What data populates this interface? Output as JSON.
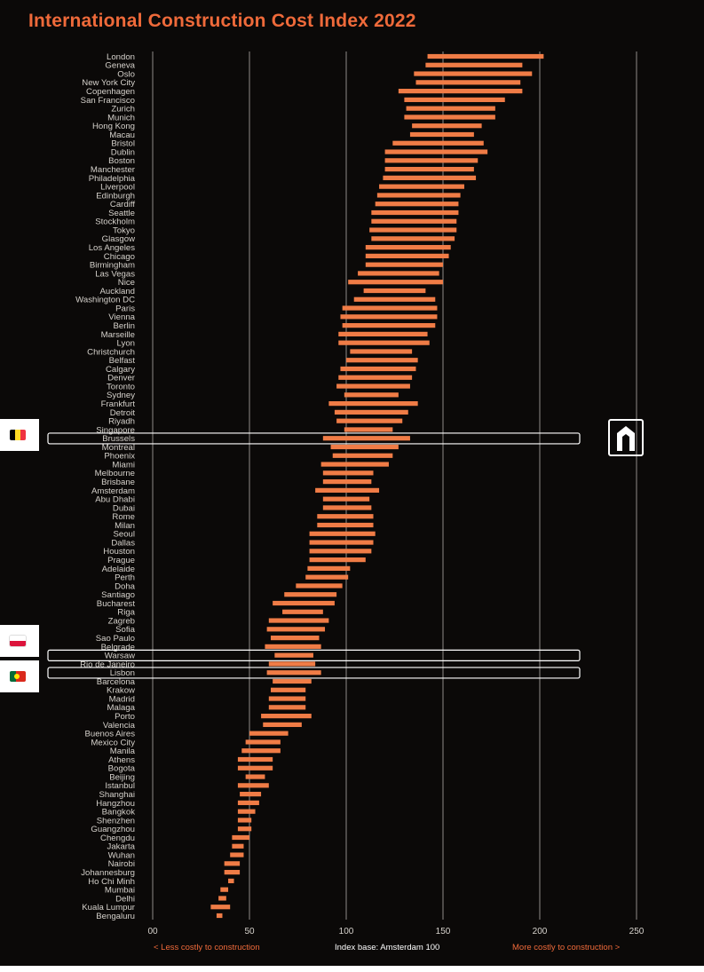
{
  "title": "International Construction Cost Index 2022",
  "footer": {
    "left": "< Less costly to construction",
    "center": "Index base: Amsterdam 100",
    "right": "More costly to construction >"
  },
  "colors": {
    "background": "#0b0908",
    "bar": "#f07c46",
    "title": "#ef6a3a",
    "text": "#d6d2cc",
    "grid": "#8f8c88",
    "highlight_box": "#ffffff"
  },
  "highlighted_cities": [
    "Brussels",
    "Warsaw",
    "Lisbon"
  ],
  "flags": [
    {
      "city": "Brussels",
      "icon": "belgium-flag-icon"
    },
    {
      "city": "Warsaw",
      "icon": "poland-flag-icon"
    },
    {
      "city": "Lisbon",
      "icon": "portugal-flag-icon"
    }
  ],
  "logo_icon": "building-logo-icon",
  "chart_data": {
    "type": "bar",
    "orientation": "horizontal-range",
    "title": "International Construction Cost Index 2022",
    "xlim": [
      0,
      250
    ],
    "xticks": [
      0,
      50,
      100,
      150,
      200,
      250
    ],
    "xtick_labels": [
      "00",
      "50",
      "100",
      "150",
      "200",
      "250"
    ],
    "grid": true,
    "categories": [
      "London",
      "Geneva",
      "Oslo",
      "New York City",
      "Copenhagen",
      "San Francisco",
      "Zurich",
      "Munich",
      "Hong Kong",
      "Macau",
      "Bristol",
      "Dublin",
      "Boston",
      "Manchester",
      "Philadelphia",
      "Liverpool",
      "Edinburgh",
      "Cardiff",
      "Seattle",
      "Stockholm",
      "Tokyo",
      "Glasgow",
      "Los Angeles",
      "Chicago",
      "Birmingham",
      "Las Vegas",
      "Nice",
      "Auckland",
      "Washington DC",
      "Paris",
      "Vienna",
      "Berlin",
      "Marseille",
      "Lyon",
      "Christchurch",
      "Belfast",
      "Calgary",
      "Denver",
      "Toronto",
      "Sydney",
      "Frankfurt",
      "Detroit",
      "Riyadh",
      "Singapore",
      "Brussels",
      "Montreal",
      "Phoenix",
      "Miami",
      "Melbourne",
      "Brisbane",
      "Amsterdam",
      "Abu Dhabi",
      "Dubai",
      "Rome",
      "Milan",
      "Seoul",
      "Dallas",
      "Houston",
      "Prague",
      "Adelaide",
      "Perth",
      "Doha",
      "Santiago",
      "Bucharest",
      "Riga",
      "Zagreb",
      "Sofia",
      "Sao Paulo",
      "Belgrade",
      "Warsaw",
      "Rio de Janeiro",
      "Lisbon",
      "Barcelona",
      "Krakow",
      "Madrid",
      "Malaga",
      "Porto",
      "Valencia",
      "Buenos Aires",
      "Mexico City",
      "Manila",
      "Athens",
      "Bogota",
      "Beijing",
      "Istanbul",
      "Shanghai",
      "Hangzhou",
      "Bangkok",
      "Shenzhen",
      "Guangzhou",
      "Chengdu",
      "Jakarta",
      "Wuhan",
      "Nairobi",
      "Johannesburg",
      "Ho Chi Minh",
      "Mumbai",
      "Delhi",
      "Kuala Lumpur",
      "Bengaluru"
    ],
    "series": [
      {
        "values_low": [
          142,
          141,
          135,
          136,
          127,
          130,
          131,
          130,
          134,
          133,
          124,
          120,
          120,
          120,
          119,
          117,
          116,
          115,
          113,
          113,
          112,
          113,
          110,
          110,
          110,
          106,
          101,
          109,
          104,
          98,
          97,
          98,
          96,
          96,
          102,
          100,
          97,
          96,
          95,
          99,
          91,
          94,
          95,
          99,
          88,
          92,
          93,
          87,
          88,
          88,
          84,
          88,
          88,
          85,
          85,
          81,
          81,
          81,
          81,
          80,
          79,
          74,
          68,
          62,
          67,
          60,
          59,
          61,
          58,
          63,
          60,
          59,
          62,
          61,
          60,
          60,
          56,
          57,
          50,
          48,
          46,
          44,
          44,
          48,
          44,
          45,
          44,
          44,
          44,
          44,
          41,
          41,
          40,
          37,
          37,
          39,
          35,
          34,
          30,
          33
        ],
        "values_high": [
          202,
          191,
          196,
          190,
          191,
          182,
          177,
          177,
          170,
          166,
          171,
          173,
          168,
          166,
          167,
          161,
          159,
          158,
          158,
          157,
          157,
          156,
          154,
          153,
          150,
          148,
          150,
          141,
          146,
          147,
          147,
          146,
          142,
          143,
          134,
          137,
          136,
          134,
          133,
          127,
          137,
          132,
          129,
          124,
          133,
          127,
          124,
          122,
          114,
          113,
          117,
          112,
          113,
          114,
          114,
          115,
          114,
          113,
          110,
          102,
          101,
          98,
          95,
          94,
          88,
          91,
          89,
          86,
          87,
          83,
          84,
          87,
          82,
          79,
          79,
          79,
          82,
          77,
          70,
          66,
          66,
          62,
          62,
          58,
          60,
          56,
          55,
          53,
          51,
          51,
          50,
          47,
          47,
          45,
          45,
          42,
          39,
          38,
          40,
          36
        ]
      }
    ]
  }
}
